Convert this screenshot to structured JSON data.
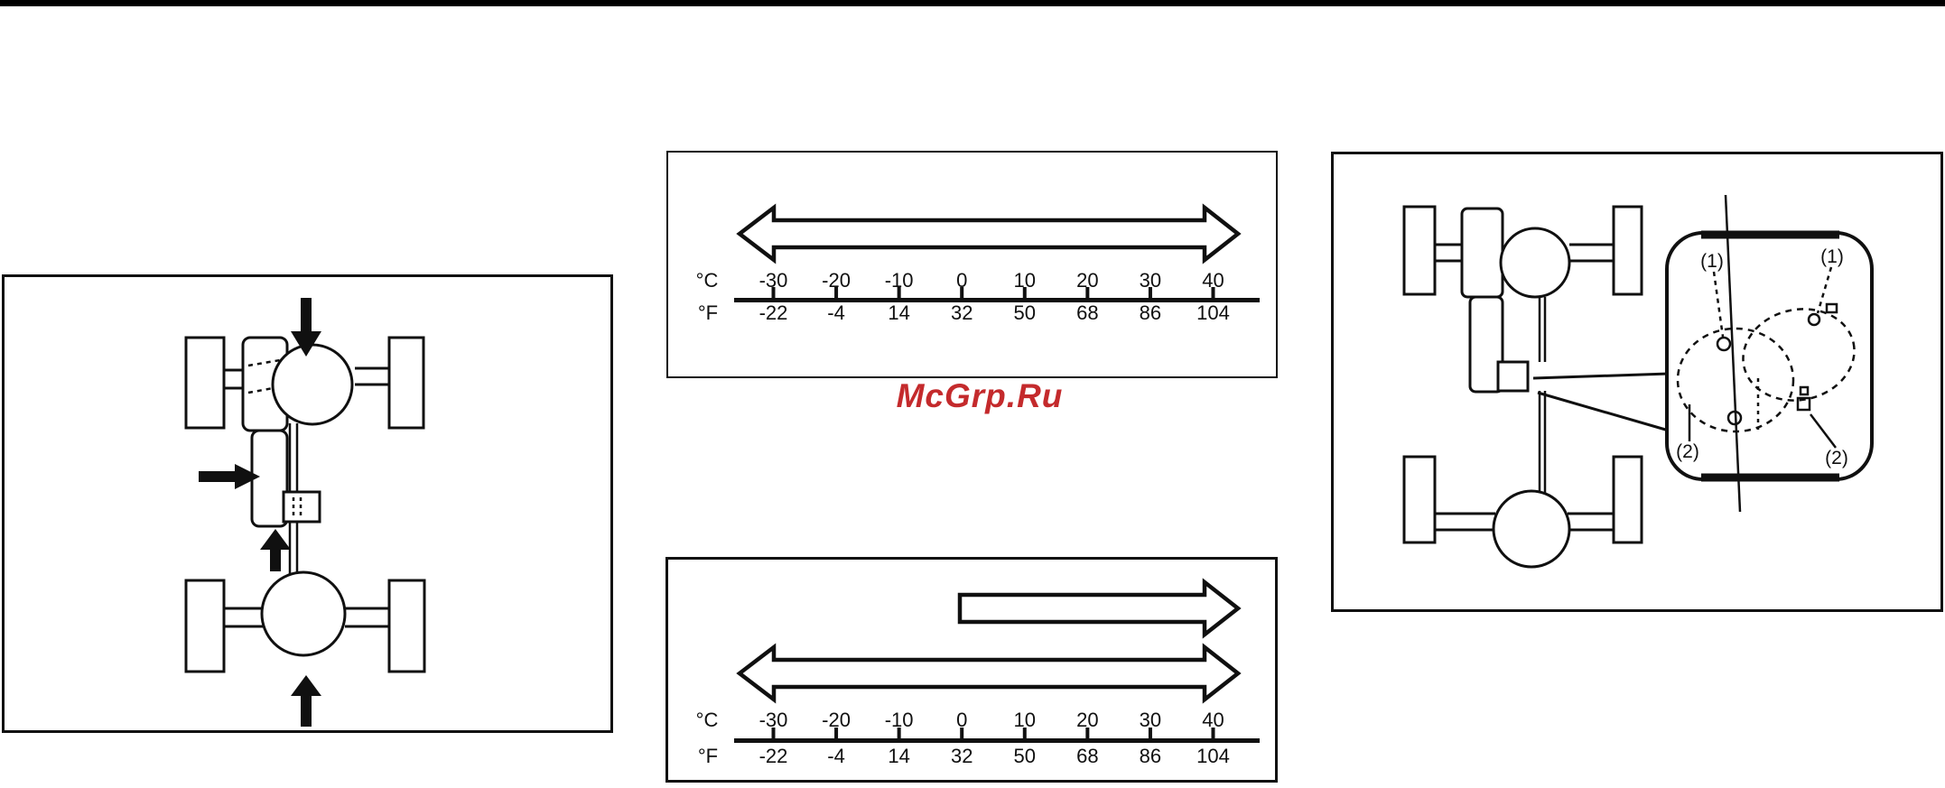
{
  "watermark": {
    "text": "McGrp.Ru",
    "color": "#c42a2c"
  },
  "temperature_scale": {
    "unit_celsius": "°C",
    "unit_fahrenheit": "°F",
    "celsius": [
      "-30",
      "-20",
      "-10",
      "0",
      "10",
      "20",
      "30",
      "40"
    ],
    "fahrenheit": [
      "-22",
      "-4",
      "14",
      "32",
      "50",
      "68",
      "86",
      "104"
    ]
  },
  "figures": {
    "temp_range_full": {
      "arrow": {
        "type": "double-headed",
        "from_celsius": -30,
        "to_celsius": 40
      }
    },
    "temp_range_partial": {
      "arrows": [
        {
          "type": "single-right",
          "from_celsius": 0,
          "to_celsius": 40
        },
        {
          "type": "double-headed",
          "from_celsius": -30,
          "to_celsius": 40
        }
      ]
    }
  },
  "transfer_case_detail": {
    "labels": [
      "(1)",
      "(1)",
      "(2)",
      "(2)"
    ]
  },
  "colors": {
    "ink": "#101010",
    "top_bar": "#000000",
    "background": "#ffffff"
  }
}
